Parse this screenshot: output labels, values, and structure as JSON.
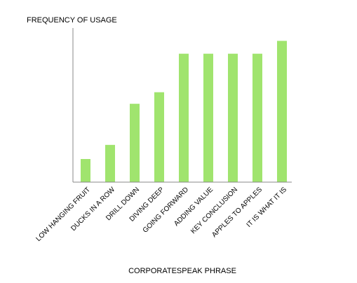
{
  "chart_data": {
    "type": "bar",
    "title": "",
    "ylabel": "FREQUENCY OF USAGE",
    "xlabel": "CORPORATESPEAK PHRASE",
    "categories": [
      "LOW HANGING FRUIT",
      "DUCKS IN A ROW",
      "DRILL DOWN",
      "DIVING DEEP",
      "GOING FORWARD",
      "ADDING VALUE",
      "KEY CONCLUSION",
      "APPLES TO APPLES",
      "IT IS WHAT IT IS"
    ],
    "values": [
      1.8,
      2.9,
      6.1,
      7.0,
      10.0,
      10.0,
      10.0,
      10.0,
      11.0
    ],
    "ylim": [
      0,
      12
    ],
    "y_ticks_shown": false,
    "grid": false,
    "legend": "none",
    "bar_color": "#a0e46e",
    "axis_color": "#888888"
  }
}
